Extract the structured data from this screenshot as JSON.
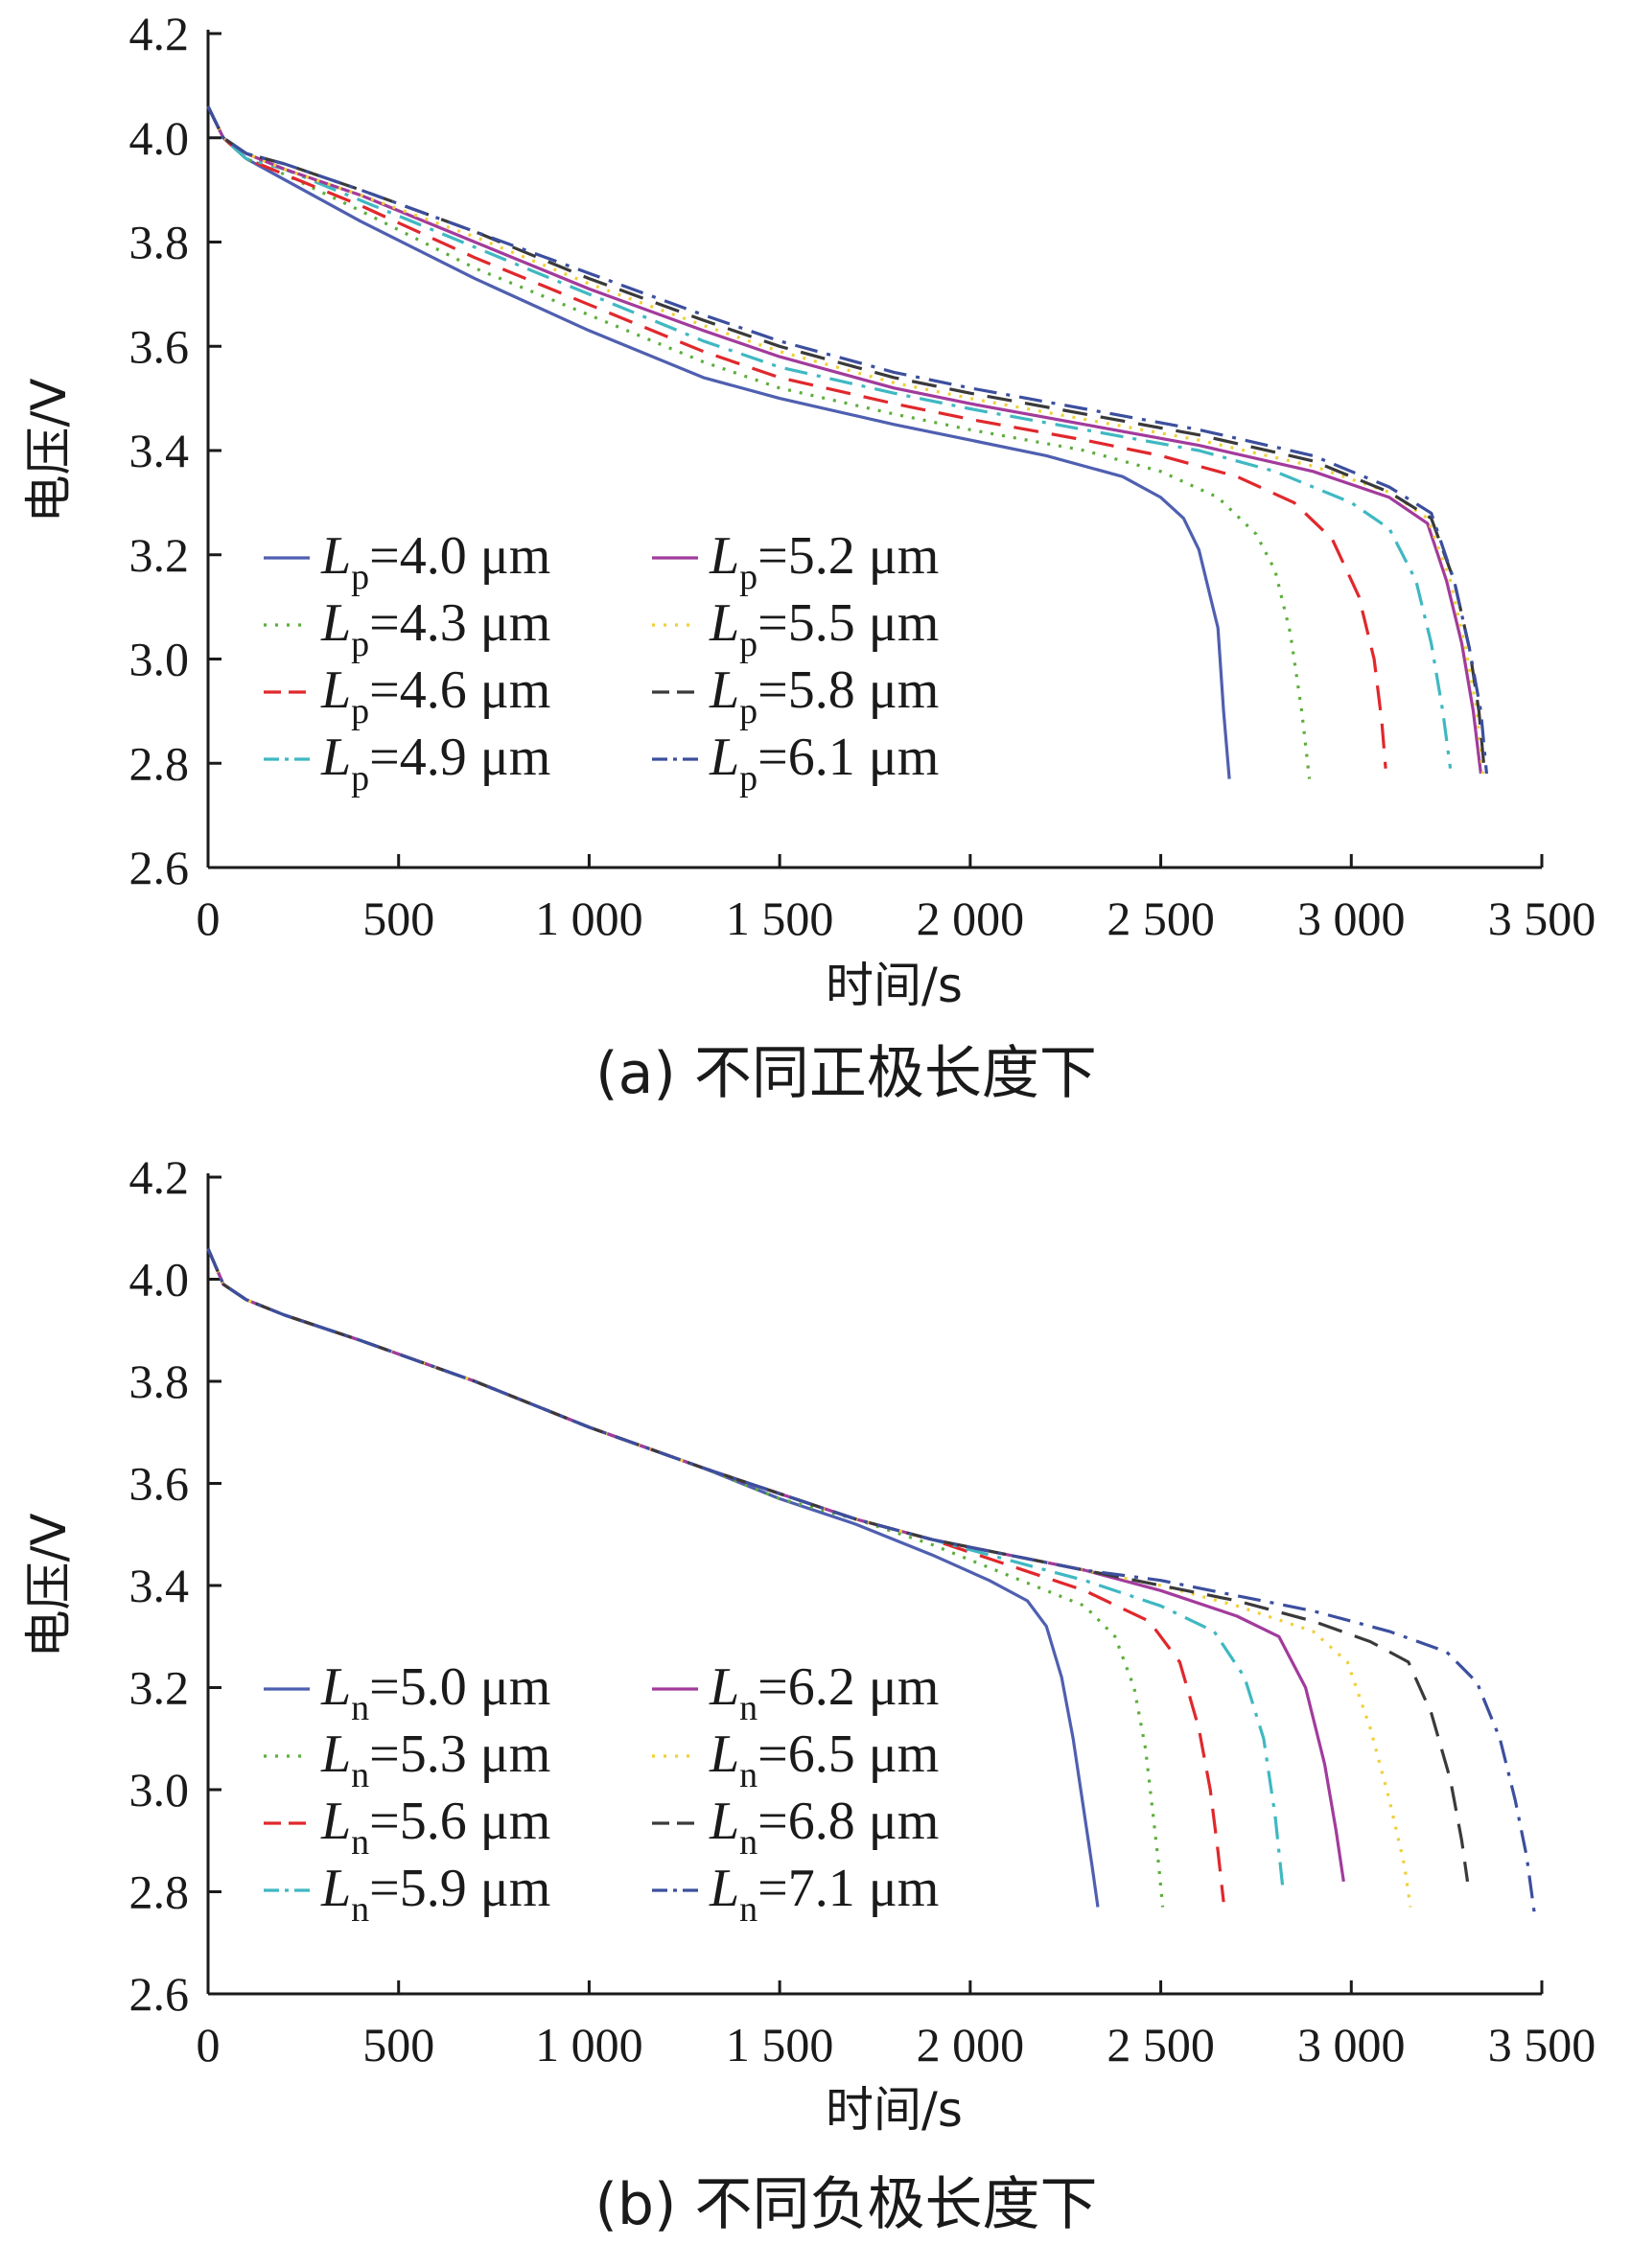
{
  "chart_data": [
    {
      "type": "line",
      "caption": "(a) 不同正极长度下",
      "xlabel": "时间/s",
      "ylabel": "电压/V",
      "xlim": [
        0,
        3500
      ],
      "ylim": [
        2.6,
        4.2
      ],
      "xticks": [
        0,
        500,
        1000,
        1500,
        2000,
        2500,
        3000,
        3500
      ],
      "xtick_labels": [
        "0",
        "500",
        "1 000",
        "1 500",
        "2 000",
        "2 500",
        "3 000",
        "3 500"
      ],
      "yticks": [
        2.6,
        2.8,
        3.0,
        3.2,
        3.4,
        3.6,
        3.8,
        4.0,
        4.2
      ],
      "ytick_labels": [
        "2.6",
        "2.8",
        "3.0",
        "3.2",
        "3.4",
        "3.6",
        "3.8",
        "4.0",
        "4.2"
      ],
      "legend_position": "lower-left",
      "legend_var": "L",
      "legend_sub": "p",
      "grid": false,
      "series": [
        {
          "name": "=4.0 μm",
          "color": "#4f5fb0",
          "dash": "solid",
          "x": [
            0,
            40,
            100,
            200,
            400,
            700,
            1000,
            1300,
            1500,
            1800,
            2000,
            2200,
            2400,
            2500,
            2560,
            2600,
            2630,
            2650,
            2665,
            2680
          ],
          "y": [
            4.06,
            4.0,
            3.96,
            3.92,
            3.84,
            3.73,
            3.63,
            3.54,
            3.5,
            3.45,
            3.42,
            3.39,
            3.35,
            3.31,
            3.27,
            3.21,
            3.12,
            3.06,
            2.9,
            2.77
          ]
        },
        {
          "name": "=4.3 μm",
          "color": "#5cae3c",
          "dash": "dot",
          "x": [
            0,
            40,
            100,
            200,
            400,
            700,
            1000,
            1300,
            1500,
            1800,
            2000,
            2300,
            2500,
            2650,
            2750,
            2800,
            2840,
            2870,
            2890
          ],
          "y": [
            4.06,
            4.0,
            3.96,
            3.93,
            3.86,
            3.75,
            3.66,
            3.57,
            3.52,
            3.47,
            3.44,
            3.4,
            3.36,
            3.31,
            3.24,
            3.17,
            3.05,
            2.9,
            2.77
          ]
        },
        {
          "name": "=4.6 μm",
          "color": "#e0282c",
          "dash": "longdash",
          "x": [
            0,
            40,
            100,
            200,
            400,
            700,
            1000,
            1300,
            1500,
            1800,
            2000,
            2300,
            2500,
            2700,
            2850,
            2950,
            3020,
            3060,
            3080,
            3090
          ],
          "y": [
            4.06,
            4.0,
            3.96,
            3.93,
            3.87,
            3.77,
            3.68,
            3.59,
            3.54,
            3.49,
            3.46,
            3.42,
            3.39,
            3.35,
            3.3,
            3.23,
            3.12,
            3.0,
            2.88,
            2.79
          ]
        },
        {
          "name": "=4.9 μm",
          "color": "#3fb8c2",
          "dash": "dashdot",
          "x": [
            0,
            40,
            100,
            200,
            400,
            700,
            1000,
            1300,
            1500,
            1800,
            2000,
            2300,
            2600,
            2800,
            3000,
            3100,
            3170,
            3210,
            3240,
            3260
          ],
          "y": [
            4.06,
            4.0,
            3.96,
            3.94,
            3.88,
            3.79,
            3.7,
            3.61,
            3.56,
            3.51,
            3.48,
            3.44,
            3.4,
            3.36,
            3.3,
            3.25,
            3.15,
            3.03,
            2.9,
            2.79
          ]
        },
        {
          "name": "=5.2 μm",
          "color": "#a23b9c",
          "dash": "solid",
          "x": [
            0,
            40,
            100,
            200,
            400,
            700,
            1000,
            1300,
            1500,
            1800,
            2000,
            2300,
            2600,
            2900,
            3100,
            3200,
            3250,
            3290,
            3320,
            3340
          ],
          "y": [
            4.06,
            4.0,
            3.97,
            3.94,
            3.89,
            3.8,
            3.71,
            3.63,
            3.58,
            3.52,
            3.49,
            3.45,
            3.41,
            3.36,
            3.31,
            3.26,
            3.15,
            3.03,
            2.9,
            2.78
          ]
        },
        {
          "name": "=5.5 μm",
          "color": "#f0cf38",
          "dash": "dot",
          "x": [
            0,
            40,
            100,
            200,
            400,
            700,
            1000,
            1300,
            1500,
            1800,
            2000,
            2300,
            2600,
            2900,
            3100,
            3200,
            3260,
            3300,
            3330,
            3345
          ],
          "y": [
            4.06,
            4.0,
            3.97,
            3.94,
            3.89,
            3.81,
            3.72,
            3.64,
            3.59,
            3.53,
            3.5,
            3.46,
            3.42,
            3.37,
            3.32,
            3.27,
            3.15,
            3.02,
            2.9,
            2.78
          ]
        },
        {
          "name": "=5.8 μm",
          "color": "#3a3a3a",
          "dash": "longdash",
          "x": [
            0,
            40,
            100,
            200,
            400,
            700,
            1000,
            1300,
            1500,
            1800,
            2000,
            2300,
            2600,
            2900,
            3100,
            3210,
            3270,
            3310,
            3335,
            3350
          ],
          "y": [
            4.06,
            4.0,
            3.97,
            3.95,
            3.9,
            3.82,
            3.73,
            3.65,
            3.6,
            3.54,
            3.51,
            3.47,
            3.43,
            3.38,
            3.32,
            3.27,
            3.15,
            3.02,
            2.9,
            2.78
          ]
        },
        {
          "name": "=6.1 μm",
          "color": "#3c4f9e",
          "dash": "dashdot",
          "x": [
            0,
            40,
            100,
            200,
            400,
            700,
            1000,
            1300,
            1500,
            1800,
            2000,
            2300,
            2600,
            2900,
            3100,
            3210,
            3270,
            3310,
            3340,
            3355
          ],
          "y": [
            4.06,
            4.0,
            3.97,
            3.95,
            3.9,
            3.82,
            3.74,
            3.66,
            3.61,
            3.55,
            3.52,
            3.48,
            3.44,
            3.39,
            3.33,
            3.28,
            3.15,
            3.02,
            2.9,
            2.78
          ]
        }
      ]
    },
    {
      "type": "line",
      "caption": "(b) 不同负极长度下",
      "xlabel": "时间/s",
      "ylabel": "电压/V",
      "xlim": [
        0,
        3500
      ],
      "ylim": [
        2.6,
        4.2
      ],
      "xticks": [
        0,
        500,
        1000,
        1500,
        2000,
        2500,
        3000,
        3500
      ],
      "xtick_labels": [
        "0",
        "500",
        "1 000",
        "1 500",
        "2 000",
        "2 500",
        "3 000",
        "3 500"
      ],
      "yticks": [
        2.6,
        2.8,
        3.0,
        3.2,
        3.4,
        3.6,
        3.8,
        4.0,
        4.2
      ],
      "ytick_labels": [
        "2.6",
        "2.8",
        "3.0",
        "3.2",
        "3.4",
        "3.6",
        "3.8",
        "4.0",
        "4.2"
      ],
      "legend_position": "lower-left",
      "legend_var": "L",
      "legend_sub": "n",
      "grid": false,
      "series": [
        {
          "name": "=5.0 μm",
          "color": "#4f5fb0",
          "dash": "solid",
          "x": [
            0,
            40,
            100,
            200,
            400,
            700,
            1000,
            1300,
            1500,
            1700,
            1900,
            2050,
            2150,
            2200,
            2240,
            2270,
            2300,
            2320,
            2335
          ],
          "y": [
            4.06,
            3.99,
            3.96,
            3.93,
            3.88,
            3.8,
            3.71,
            3.63,
            3.57,
            3.52,
            3.46,
            3.41,
            3.37,
            3.32,
            3.22,
            3.1,
            2.95,
            2.85,
            2.77
          ]
        },
        {
          "name": "=5.3 μm",
          "color": "#5cae3c",
          "dash": "dot",
          "x": [
            0,
            40,
            100,
            200,
            400,
            700,
            1000,
            1300,
            1500,
            1700,
            1900,
            2100,
            2300,
            2380,
            2430,
            2460,
            2480,
            2495,
            2505
          ],
          "y": [
            4.06,
            3.99,
            3.96,
            3.93,
            3.88,
            3.8,
            3.71,
            3.63,
            3.57,
            3.53,
            3.48,
            3.42,
            3.36,
            3.3,
            3.2,
            3.08,
            2.95,
            2.85,
            2.77
          ]
        },
        {
          "name": "=5.6 μm",
          "color": "#e0282c",
          "dash": "longdash",
          "x": [
            0,
            40,
            100,
            200,
            400,
            700,
            1000,
            1300,
            1500,
            1700,
            1900,
            2100,
            2300,
            2470,
            2550,
            2600,
            2630,
            2650,
            2665
          ],
          "y": [
            4.06,
            3.99,
            3.96,
            3.93,
            3.88,
            3.8,
            3.71,
            3.63,
            3.58,
            3.53,
            3.49,
            3.44,
            3.39,
            3.33,
            3.25,
            3.12,
            3.0,
            2.88,
            2.78
          ]
        },
        {
          "name": "=5.9 μm",
          "color": "#3fb8c2",
          "dash": "dashdot",
          "x": [
            0,
            40,
            100,
            200,
            400,
            700,
            1000,
            1300,
            1500,
            1700,
            1900,
            2100,
            2300,
            2500,
            2640,
            2720,
            2770,
            2800,
            2820
          ],
          "y": [
            4.06,
            3.99,
            3.96,
            3.93,
            3.88,
            3.8,
            3.71,
            3.63,
            3.58,
            3.53,
            3.49,
            3.45,
            3.41,
            3.36,
            3.31,
            3.22,
            3.1,
            2.95,
            2.81
          ]
        },
        {
          "name": "=6.2 μm",
          "color": "#a23b9c",
          "dash": "solid",
          "x": [
            0,
            40,
            100,
            200,
            400,
            700,
            1000,
            1300,
            1500,
            1700,
            1900,
            2100,
            2300,
            2500,
            2700,
            2810,
            2880,
            2930,
            2960,
            2980
          ],
          "y": [
            4.06,
            3.99,
            3.96,
            3.93,
            3.88,
            3.8,
            3.71,
            3.63,
            3.58,
            3.53,
            3.49,
            3.46,
            3.43,
            3.39,
            3.34,
            3.3,
            3.2,
            3.05,
            2.92,
            2.82
          ]
        },
        {
          "name": "=6.5 μm",
          "color": "#f0cf38",
          "dash": "dot",
          "x": [
            0,
            40,
            100,
            200,
            400,
            700,
            1000,
            1300,
            1500,
            1700,
            1900,
            2100,
            2300,
            2500,
            2700,
            2900,
            2990,
            3050,
            3100,
            3140,
            3155
          ],
          "y": [
            4.06,
            3.99,
            3.96,
            3.93,
            3.88,
            3.8,
            3.71,
            3.63,
            3.58,
            3.53,
            3.49,
            3.46,
            3.43,
            3.4,
            3.36,
            3.31,
            3.25,
            3.12,
            2.98,
            2.85,
            2.77
          ]
        },
        {
          "name": "=6.8 μm",
          "color": "#3a3a3a",
          "dash": "longdash",
          "x": [
            0,
            40,
            100,
            200,
            400,
            700,
            1000,
            1300,
            1500,
            1700,
            1900,
            2100,
            2300,
            2500,
            2700,
            2900,
            3050,
            3150,
            3210,
            3260,
            3290,
            3305
          ],
          "y": [
            4.06,
            3.99,
            3.96,
            3.93,
            3.88,
            3.8,
            3.71,
            3.63,
            3.58,
            3.53,
            3.49,
            3.46,
            3.43,
            3.4,
            3.37,
            3.33,
            3.29,
            3.25,
            3.15,
            3.02,
            2.9,
            2.82
          ]
        },
        {
          "name": "=7.1 μm",
          "color": "#3c4f9e",
          "dash": "dashdot",
          "x": [
            0,
            40,
            100,
            200,
            400,
            700,
            1000,
            1300,
            1500,
            1700,
            1900,
            2100,
            2300,
            2500,
            2700,
            2900,
            3100,
            3250,
            3330,
            3390,
            3430,
            3460,
            3480
          ],
          "y": [
            4.06,
            3.99,
            3.96,
            3.93,
            3.88,
            3.8,
            3.71,
            3.63,
            3.58,
            3.53,
            3.49,
            3.46,
            3.43,
            3.41,
            3.38,
            3.35,
            3.31,
            3.27,
            3.21,
            3.1,
            2.98,
            2.87,
            2.76
          ]
        }
      ]
    }
  ]
}
